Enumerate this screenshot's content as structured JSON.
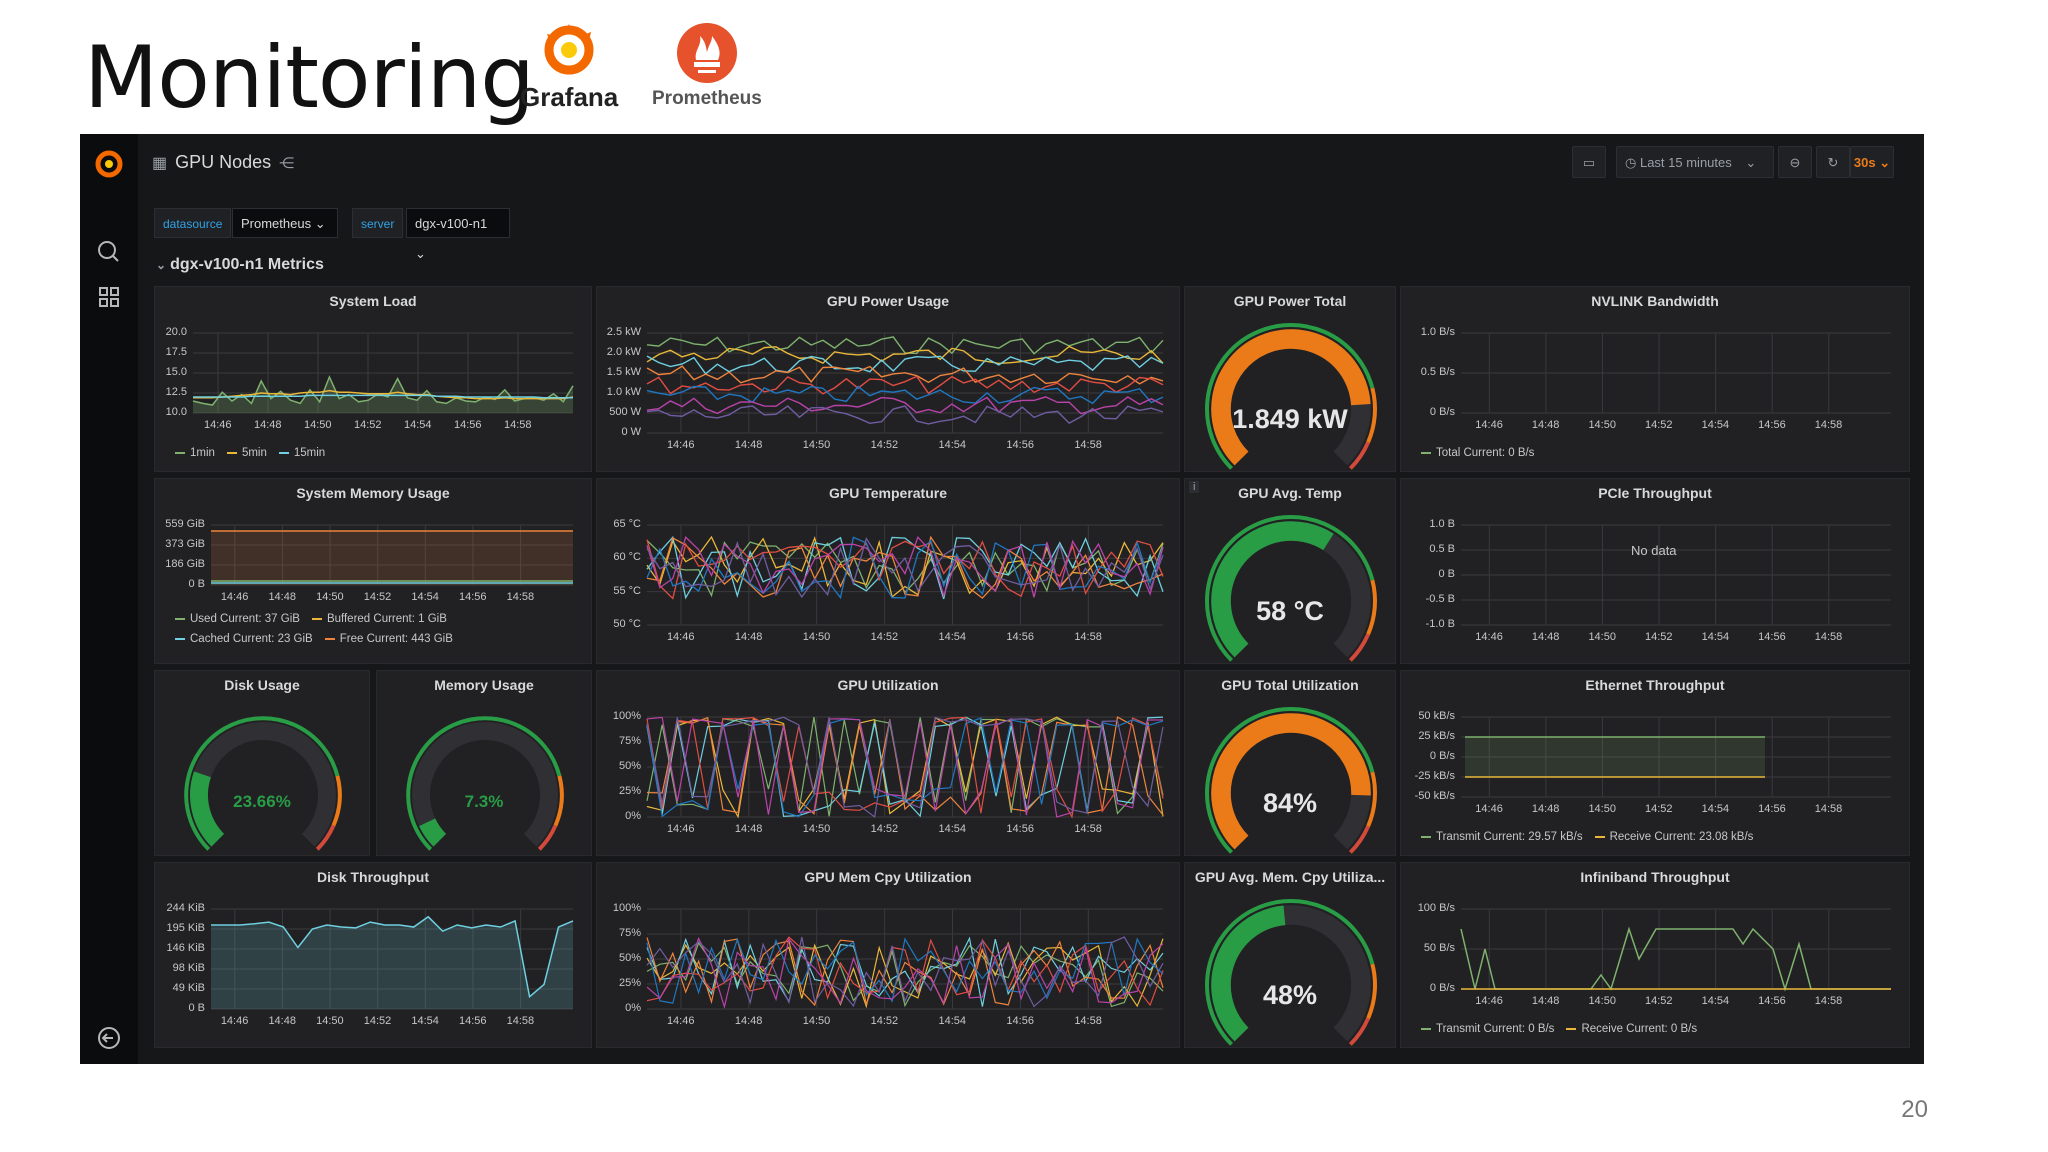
{
  "slide": {
    "title": "Monitoring",
    "page_number": "20"
  },
  "logos": {
    "grafana": "Grafana",
    "prometheus": "Prometheus"
  },
  "colors": {
    "background": "#161719",
    "panel": "#212124",
    "green": "#299c46",
    "orange": "#eb7b18",
    "yellow": "#cfcf2e",
    "blue": "#7eb26d"
  },
  "topbar": {
    "dashboard_title": "GPU Nodes",
    "time_range": "Last 15 minutes",
    "refresh": "30s",
    "icons": [
      "grid-icon",
      "share-icon",
      "tv-icon",
      "clock-icon",
      "zoom-out-icon",
      "refresh-icon"
    ]
  },
  "sidebar": {
    "icons": [
      "grafana-logo-icon",
      "search-icon",
      "dashboards-icon",
      "sign-out-icon"
    ]
  },
  "variables": [
    {
      "label": "datasource",
      "value": "Prometheus"
    },
    {
      "label": "server",
      "value": "dgx-v100-n1"
    }
  ],
  "row_title": "dgx-v100-n1 Metrics",
  "time_ticks": [
    "14:46",
    "14:48",
    "14:50",
    "14:52",
    "14:54",
    "14:56",
    "14:58"
  ],
  "panels": {
    "system_load": {
      "title": "System Load",
      "y_ticks": [
        "20.0",
        "17.5",
        "15.0",
        "12.5",
        "10.0"
      ],
      "legend": [
        {
          "name": "1min",
          "color": "#7eb26d"
        },
        {
          "name": "5min",
          "color": "#eab839"
        },
        {
          "name": "15min",
          "color": "#6ed0e0"
        }
      ],
      "series": {
        "1min": [
          11.5,
          11.2,
          11.0,
          12.6,
          11.5,
          12.3,
          11.2,
          14.0,
          11.8,
          12.7,
          11.6,
          11.2,
          12.9,
          11.4,
          14.5,
          11.8,
          12.3,
          11.4,
          11.6,
          12.4,
          12.0,
          14.3,
          11.9,
          11.6,
          12.8,
          11.4,
          11.2,
          11.9,
          11.5,
          11.4,
          12.0,
          11.7,
          12.9,
          11.5,
          11.8,
          11.9,
          11.6,
          12.4,
          11.4,
          13.4
        ],
        "5min": [
          11.9,
          11.9,
          11.9,
          12.0,
          12.1,
          12.2,
          12.3,
          12.5,
          12.4,
          12.4,
          12.3,
          12.5,
          12.6,
          12.6,
          12.8,
          12.6,
          12.6,
          12.5,
          12.4,
          12.4,
          12.4,
          12.6,
          12.4,
          12.3,
          12.3,
          12.1,
          12.0,
          11.9,
          11.9,
          11.8,
          11.8,
          11.8,
          11.9,
          11.8,
          11.8,
          11.8,
          11.8,
          11.8,
          11.8,
          12.0
        ],
        "15min": [
          12.0,
          12.0,
          12.0,
          12.0,
          12.0,
          12.0,
          12.1,
          12.1,
          12.1,
          12.1,
          12.1,
          12.1,
          12.2,
          12.2,
          12.2,
          12.2,
          12.2,
          12.2,
          12.2,
          12.2,
          12.2,
          12.2,
          12.2,
          12.2,
          12.2,
          12.1,
          12.1,
          12.1,
          12.0,
          12.0,
          12.0,
          12.0,
          12.0,
          12.0,
          12.0,
          12.0,
          11.9,
          11.9,
          11.9,
          11.9
        ]
      }
    },
    "gpu_power_usage": {
      "title": "GPU Power Usage",
      "y_ticks": [
        "2.5 kW",
        "2.0 kW",
        "1.5 kW",
        "1.0 kW",
        "500 W",
        "0 W"
      ]
    },
    "gpu_power_total": {
      "title": "GPU Power Total",
      "value": "1.849 kW",
      "fraction": 0.82,
      "color": "#eb7b18"
    },
    "nvlink_bandwidth": {
      "title": "NVLINK Bandwidth",
      "y_ticks": [
        "1.0 B/s",
        "0.5 B/s",
        "0 B/s"
      ],
      "legend": [
        {
          "name": "Total  Current: 0 B/s",
          "color": "#7eb26d"
        }
      ]
    },
    "system_memory_usage": {
      "title": "System Memory Usage",
      "y_ticks": [
        "559 GiB",
        "373 GiB",
        "186 GiB",
        "0 B"
      ],
      "legend_rows": [
        [
          {
            "name": "Used  Current: 37 GiB",
            "color": "#7eb26d"
          },
          {
            "name": "Buffered  Current: 1 GiB",
            "color": "#eab839"
          }
        ],
        [
          {
            "name": "Cached  Current: 23 GiB",
            "color": "#6ed0e0"
          },
          {
            "name": "Free  Current: 443 GiB",
            "color": "#ef843c"
          }
        ]
      ]
    },
    "gpu_temperature": {
      "title": "GPU Temperature",
      "y_ticks": [
        "65 °C",
        "60 °C",
        "55 °C",
        "50 °C"
      ]
    },
    "gpu_avg_temp": {
      "title": "GPU Avg. Temp",
      "value": "58 °C",
      "fraction": 0.62,
      "color": "#299c46",
      "info": "i"
    },
    "pcie_throughput": {
      "title": "PCIe Throughput",
      "y_ticks": [
        "1.0 B",
        "0.5 B",
        "0 B",
        "-0.5 B",
        "-1.0 B"
      ],
      "no_data": "No data"
    },
    "disk_usage": {
      "title": "Disk Usage",
      "value": "23.66%",
      "fraction": 0.2366,
      "color": "#299c46"
    },
    "memory_usage": {
      "title": "Memory Usage",
      "value": "7.3%",
      "fraction": 0.073,
      "color": "#299c46"
    },
    "gpu_utilization": {
      "title": "GPU Utilization",
      "y_ticks": [
        "100%",
        "75%",
        "50%",
        "25%",
        "0%"
      ]
    },
    "gpu_total_utilization": {
      "title": "GPU Total Utilization",
      "value": "84%",
      "fraction": 0.84,
      "color": "#eb7b18"
    },
    "ethernet_throughput": {
      "title": "Ethernet Throughput",
      "y_ticks": [
        "50 kB/s",
        "25 kB/s",
        "0 B/s",
        "-25 kB/s",
        "-50 kB/s"
      ],
      "legend": [
        {
          "name": "Transmit  Current: 29.57 kB/s",
          "color": "#7eb26d"
        },
        {
          "name": "Receive  Current: 23.08 kB/s",
          "color": "#eab839"
        }
      ]
    },
    "disk_throughput": {
      "title": "Disk Throughput",
      "y_ticks": [
        "244 KiB",
        "195 KiB",
        "146 KiB",
        "98 KiB",
        "49 KiB",
        "0 B"
      ],
      "series": [
        205,
        205,
        205,
        208,
        212,
        200,
        150,
        195,
        205,
        200,
        198,
        212,
        205,
        205,
        200,
        225,
        190,
        205,
        198,
        205,
        200,
        215,
        30,
        60,
        200,
        215
      ]
    },
    "gpu_mem_cpy_utilization": {
      "title": "GPU Mem Cpy Utilization",
      "y_ticks": [
        "100%",
        "75%",
        "50%",
        "25%",
        "0%"
      ]
    },
    "gpu_avg_mem_cpy": {
      "title": "GPU Avg. Mem. Cpy Utiliza...",
      "value": "48%",
      "fraction": 0.48,
      "color": "#299c46"
    },
    "infiniband_throughput": {
      "title": "Infiniband Throughput",
      "y_ticks": [
        "100 B/s",
        "50 B/s",
        "0 B/s"
      ],
      "legend": [
        {
          "name": "Transmit  Current: 0 B/s",
          "color": "#7eb26d"
        },
        {
          "name": "Receive  Current: 0 B/s",
          "color": "#eab839"
        }
      ]
    }
  }
}
